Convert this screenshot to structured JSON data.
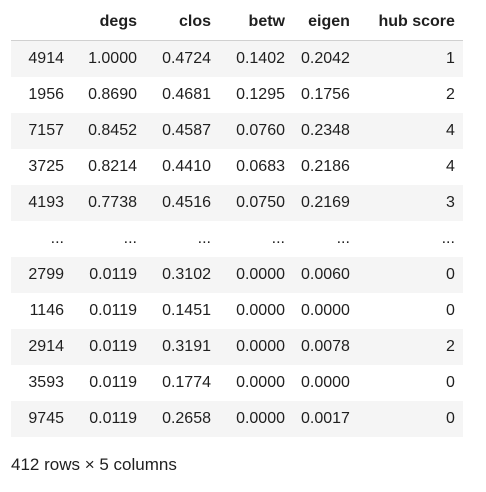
{
  "table": {
    "columns": [
      "",
      "degs",
      "clos",
      "betw",
      "eigen",
      "hub score"
    ],
    "rows": [
      [
        "4914",
        "1.0000",
        "0.4724",
        "0.1402",
        "0.2042",
        "1"
      ],
      [
        "1956",
        "0.8690",
        "0.4681",
        "0.1295",
        "0.1756",
        "2"
      ],
      [
        "7157",
        "0.8452",
        "0.4587",
        "0.0760",
        "0.2348",
        "4"
      ],
      [
        "3725",
        "0.8214",
        "0.4410",
        "0.0683",
        "0.2186",
        "4"
      ],
      [
        "4193",
        "0.7738",
        "0.4516",
        "0.0750",
        "0.2169",
        "3"
      ],
      [
        "...",
        "...",
        "...",
        "...",
        "...",
        "..."
      ],
      [
        "2799",
        "0.0119",
        "0.3102",
        "0.0000",
        "0.0060",
        "0"
      ],
      [
        "1146",
        "0.0119",
        "0.1451",
        "0.0000",
        "0.0000",
        "0"
      ],
      [
        "2914",
        "0.0119",
        "0.3191",
        "0.0000",
        "0.0078",
        "2"
      ],
      [
        "3593",
        "0.0119",
        "0.1774",
        "0.0000",
        "0.0000",
        "0"
      ],
      [
        "9745",
        "0.0119",
        "0.2658",
        "0.0000",
        "0.0017",
        "0"
      ]
    ]
  },
  "footer": {
    "shape_text": "412 rows × 5 columns"
  }
}
